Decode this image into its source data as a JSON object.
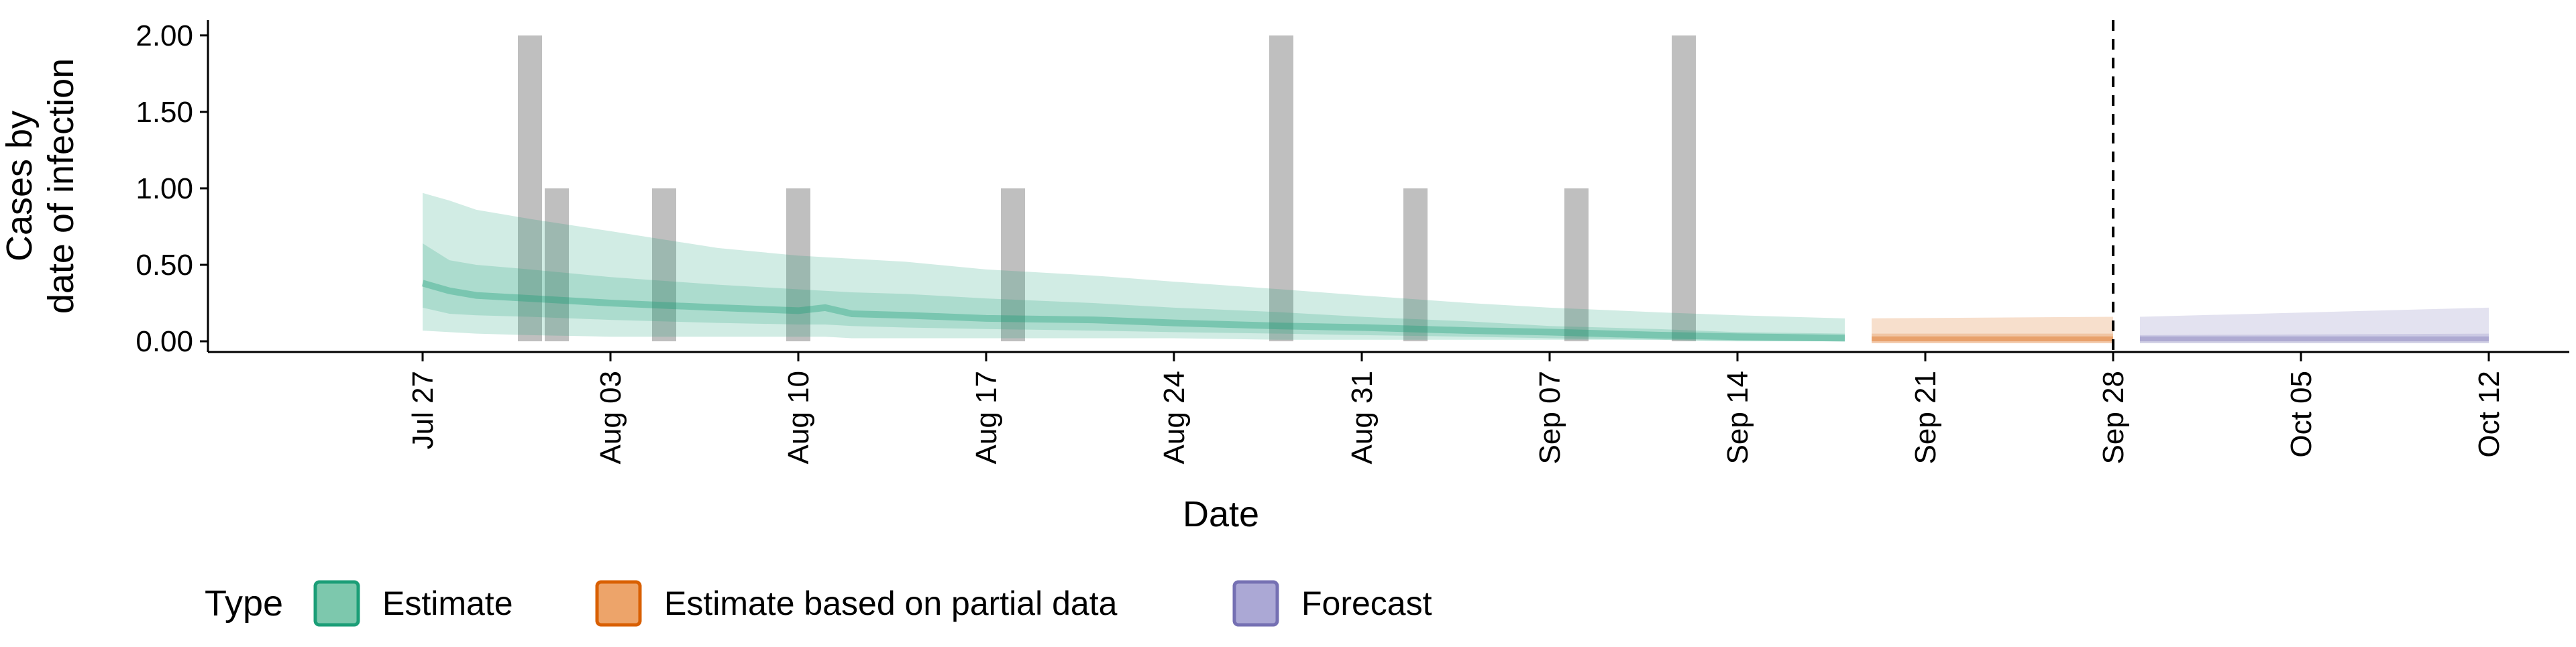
{
  "chart_data": {
    "type": "area",
    "title": "",
    "xlabel": "Date",
    "ylabel_lines": [
      "Cases by",
      "date of infection"
    ],
    "y_ticks": [
      "0.00",
      "0.50",
      "1.00",
      "1.50",
      "2.00"
    ],
    "ylim": [
      -0.07,
      2.1
    ],
    "xlim": [
      "2020-07-19",
      "2020-10-15"
    ],
    "x_ticks": [
      {
        "date": "2020-07-27",
        "label": "Jul 27"
      },
      {
        "date": "2020-08-03",
        "label": "Aug 03"
      },
      {
        "date": "2020-08-10",
        "label": "Aug 10"
      },
      {
        "date": "2020-08-17",
        "label": "Aug 17"
      },
      {
        "date": "2020-08-24",
        "label": "Aug 24"
      },
      {
        "date": "2020-08-31",
        "label": "Aug 31"
      },
      {
        "date": "2020-09-07",
        "label": "Sep 07"
      },
      {
        "date": "2020-09-14",
        "label": "Sep 14"
      },
      {
        "date": "2020-09-21",
        "label": "Sep 21"
      },
      {
        "date": "2020-09-28",
        "label": "Sep 28"
      },
      {
        "date": "2020-10-05",
        "label": "Oct 05"
      },
      {
        "date": "2020-10-12",
        "label": "Oct 12"
      }
    ],
    "grid": false,
    "legend_placement": "bottom-left",
    "legend": {
      "title": "Type",
      "items": [
        {
          "label": "Estimate",
          "fill": "#7dc8ad",
          "stroke": "#1b9e77"
        },
        {
          "label": "Estimate based on partial data",
          "fill": "#eda46a",
          "stroke": "#d95f02"
        },
        {
          "label": "Forecast",
          "fill": "#aba8d5",
          "stroke": "#7570b3"
        }
      ]
    },
    "vline_date": "2020-09-28",
    "observed_cases": [
      {
        "date": "2020-07-31",
        "value": 2
      },
      {
        "date": "2020-08-01",
        "value": 1
      },
      {
        "date": "2020-08-05",
        "value": 1
      },
      {
        "date": "2020-08-10",
        "value": 1
      },
      {
        "date": "2020-08-18",
        "value": 1
      },
      {
        "date": "2020-08-28",
        "value": 2
      },
      {
        "date": "2020-09-02",
        "value": 1
      },
      {
        "date": "2020-09-08",
        "value": 1
      },
      {
        "date": "2020-09-12",
        "value": 2
      }
    ],
    "series": [
      {
        "name": "Estimate",
        "fill": "#1b9e77",
        "dates": [
          "2020-07-27",
          "2020-07-28",
          "2020-07-29",
          "2020-07-31",
          "2020-08-03",
          "2020-08-07",
          "2020-08-10",
          "2020-08-11",
          "2020-08-12",
          "2020-08-14",
          "2020-08-17",
          "2020-08-21",
          "2020-08-24",
          "2020-08-28",
          "2020-08-31",
          "2020-09-04",
          "2020-09-07",
          "2020-09-11",
          "2020-09-14",
          "2020-09-18"
        ],
        "outer_lower": [
          0.07,
          0.06,
          0.05,
          0.04,
          0.03,
          0.03,
          0.03,
          0.03,
          0.02,
          0.02,
          0.02,
          0.02,
          0.02,
          0.01,
          0.01,
          0.01,
          0.01,
          0.01,
          0.0,
          0.0
        ],
        "outer_upper": [
          0.97,
          0.92,
          0.86,
          0.8,
          0.72,
          0.61,
          0.56,
          0.55,
          0.54,
          0.52,
          0.47,
          0.43,
          0.39,
          0.34,
          0.3,
          0.25,
          0.22,
          0.19,
          0.17,
          0.15
        ],
        "inner_lower": [
          0.22,
          0.18,
          0.17,
          0.16,
          0.14,
          0.12,
          0.11,
          0.11,
          0.1,
          0.09,
          0.08,
          0.07,
          0.06,
          0.05,
          0.04,
          0.03,
          0.02,
          0.01,
          0.0,
          0.0
        ],
        "inner_upper": [
          0.64,
          0.53,
          0.5,
          0.47,
          0.42,
          0.37,
          0.34,
          0.33,
          0.32,
          0.31,
          0.28,
          0.25,
          0.22,
          0.19,
          0.16,
          0.13,
          0.1,
          0.08,
          0.06,
          0.05
        ],
        "median": [
          0.38,
          0.33,
          0.3,
          0.28,
          0.25,
          0.22,
          0.2,
          0.22,
          0.18,
          0.17,
          0.15,
          0.14,
          0.12,
          0.1,
          0.09,
          0.07,
          0.06,
          0.04,
          0.03,
          0.02
        ]
      },
      {
        "name": "Estimate based on partial data",
        "fill": "#d95f02",
        "dates": [
          "2020-09-19",
          "2020-09-28"
        ],
        "outer_lower": [
          0.0,
          0.0
        ],
        "outer_upper": [
          0.15,
          0.16
        ],
        "inner_lower": [
          0.0,
          0.0
        ],
        "inner_upper": [
          0.05,
          0.05
        ],
        "median": [
          0.01,
          0.01
        ]
      },
      {
        "name": "Forecast",
        "fill": "#7570b3",
        "dates": [
          "2020-09-29",
          "2020-10-12"
        ],
        "outer_lower": [
          0.0,
          0.0
        ],
        "outer_upper": [
          0.16,
          0.22
        ],
        "inner_lower": [
          0.0,
          0.0
        ],
        "inner_upper": [
          0.04,
          0.05
        ],
        "median": [
          0.01,
          0.01
        ]
      }
    ]
  }
}
